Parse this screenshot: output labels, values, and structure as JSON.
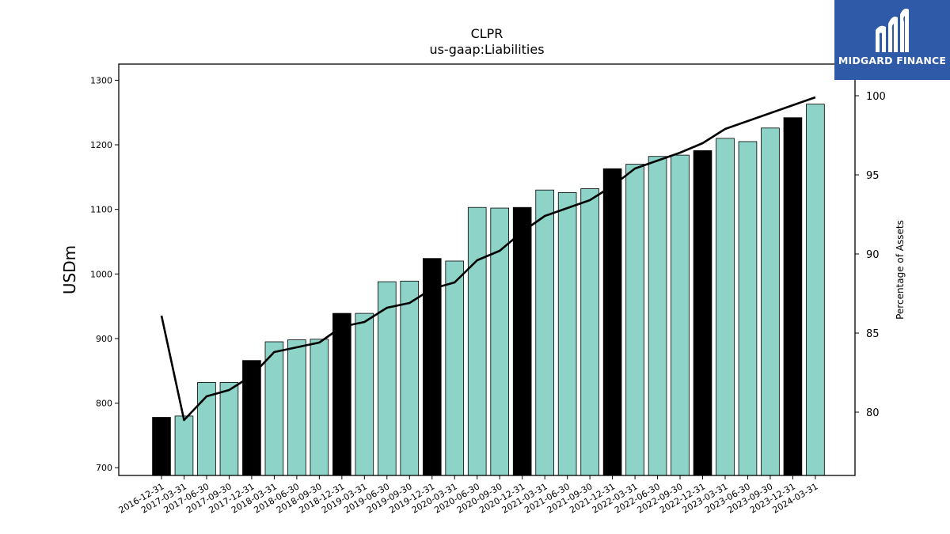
{
  "chart_data": {
    "type": "bar",
    "title": "CLPR",
    "subtitle": "us-gaap:Liabilities",
    "ylabel": "USDm",
    "y2label": "Percentage of Assets",
    "ylim": [
      688,
      1325
    ],
    "y2lim": [
      76,
      102
    ],
    "yticks": [
      700,
      800,
      900,
      1000,
      1100,
      1200,
      1300
    ],
    "y2ticks": [
      80,
      85,
      90,
      95,
      100
    ],
    "categories": [
      "2016-12-31",
      "2017-03-31",
      "2017-06-30",
      "2017-09-30",
      "2017-12-31",
      "2018-03-31",
      "2018-06-30",
      "2018-09-30",
      "2018-12-31",
      "2019-03-31",
      "2019-06-30",
      "2019-09-30",
      "2019-12-31",
      "2020-03-31",
      "2020-06-30",
      "2020-09-30",
      "2020-12-31",
      "2021-03-31",
      "2021-06-30",
      "2021-09-30",
      "2021-12-31",
      "2022-03-31",
      "2022-06-30",
      "2022-09-30",
      "2022-12-31",
      "2023-03-31",
      "2023-06-30",
      "2023-09-30",
      "2023-12-31",
      "2024-03-31"
    ],
    "series": [
      {
        "values": [
          778,
          780,
          832,
          832,
          866,
          895,
          898,
          899,
          939,
          939,
          988,
          989,
          1024,
          1020,
          1103,
          1102,
          1103,
          1130,
          1126,
          1132,
          1163,
          1170,
          1182,
          1184,
          1191,
          1210,
          1205,
          1226,
          1242,
          1263
        ],
        "year_end": [
          true,
          false,
          false,
          false,
          true,
          false,
          false,
          false,
          true,
          false,
          false,
          false,
          true,
          false,
          false,
          false,
          true,
          false,
          false,
          false,
          true,
          false,
          false,
          false,
          true,
          false,
          false,
          false,
          true,
          false
        ],
        "colors": {
          "year_end": "#000000",
          "quarter": "#8dd3c7"
        }
      },
      {
        "axis": "right",
        "type": "line",
        "color": "#000000",
        "values": [
          86.1,
          79.5,
          81.0,
          81.4,
          82.3,
          83.8,
          84.1,
          84.4,
          85.4,
          85.7,
          86.6,
          86.9,
          87.8,
          88.2,
          89.6,
          90.2,
          91.4,
          92.4,
          92.9,
          93.4,
          94.3,
          95.4,
          95.9,
          96.4,
          97.0,
          97.9,
          98.4,
          98.9,
          99.4,
          99.9
        ]
      }
    ]
  },
  "logo": {
    "text": "MIDGARD FINANCE"
  }
}
